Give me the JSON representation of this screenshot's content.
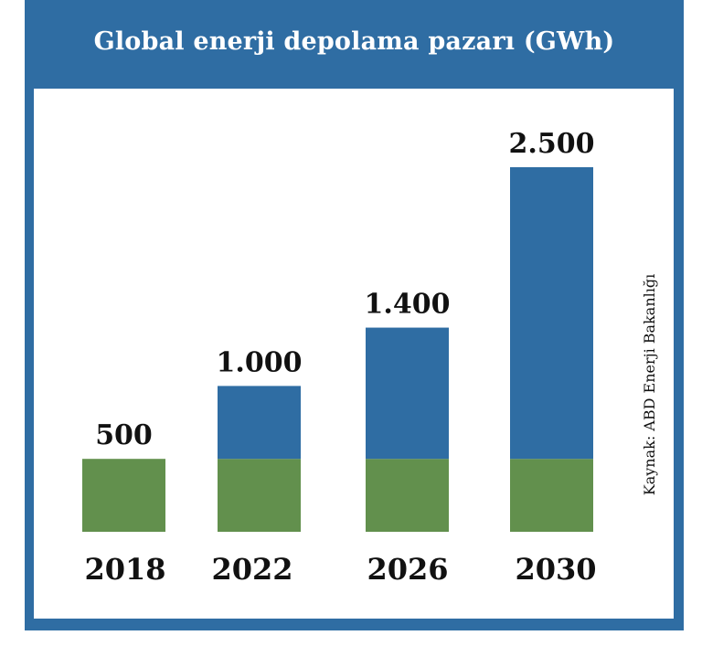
{
  "chart_data": {
    "type": "bar",
    "title": "Global enerji depolama pazarı (GWh)",
    "categories": [
      "2018",
      "2022",
      "2026",
      "2030"
    ],
    "series": [
      {
        "values": [
          500,
          500,
          500,
          500
        ],
        "color": "#62904d"
      },
      {
        "values": [
          0,
          500,
          900,
          2000
        ],
        "color": "#2f6da3"
      }
    ],
    "totals": [
      "500",
      "1.000",
      "1.400",
      "2.500"
    ],
    "total_values": [
      500,
      1000,
      1400,
      2500
    ],
    "source": "Kaynak: ABD Enerji Bakanlığı",
    "ylim": [
      0,
      2500
    ],
    "grid": false,
    "legend": "none"
  },
  "colors": {
    "frame": "#2f6da3",
    "base": "#62904d",
    "growth": "#2f6da3"
  }
}
